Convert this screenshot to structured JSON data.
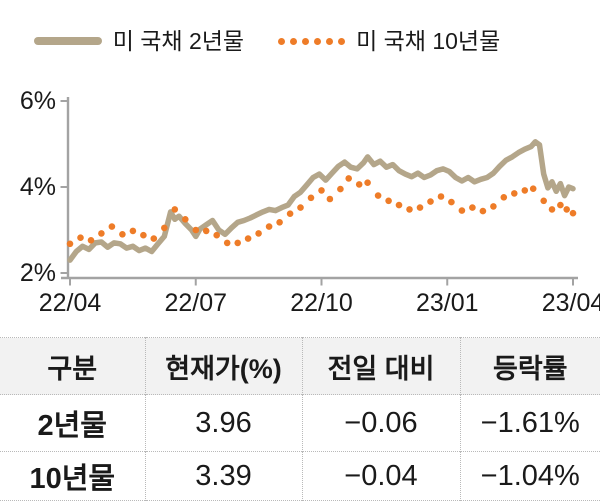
{
  "legend": {
    "items": [
      {
        "label": "미 국채 2년물",
        "swatch": "solid-line"
      },
      {
        "label": "미 국채 10년물",
        "swatch": "dotted-line"
      }
    ]
  },
  "colors": {
    "series_2y": "#b4a68a",
    "series_10y": "#ee7c28",
    "axis": "#a3a3a3",
    "text": "#1a1a1a",
    "table_header_bg": "#f2f2f2",
    "table_border": "#b9b9b9"
  },
  "chart_data": {
    "type": "line",
    "title": "",
    "xlabel": "",
    "ylabel": "",
    "x_unit": "months from 2022-04",
    "xlim": [
      0,
      12
    ],
    "ylim": [
      2,
      6
    ],
    "grid": false,
    "legend_position": "top",
    "x_ticks": [
      {
        "pos": 0,
        "label": "22/04"
      },
      {
        "pos": 3,
        "label": "22/07"
      },
      {
        "pos": 6,
        "label": "22/10"
      },
      {
        "pos": 9,
        "label": "23/01"
      },
      {
        "pos": 12,
        "label": "23/04"
      }
    ],
    "y_ticks": [
      {
        "pos": 2,
        "label": "2%"
      },
      {
        "pos": 4,
        "label": "4%"
      },
      {
        "pos": 6,
        "label": "6%"
      }
    ],
    "series": [
      {
        "name": "미 국채 2년물",
        "style": "solid",
        "color": "#b4a68a",
        "points": [
          [
            0,
            2.3
          ],
          [
            0.15,
            2.5
          ],
          [
            0.3,
            2.62
          ],
          [
            0.45,
            2.55
          ],
          [
            0.6,
            2.7
          ],
          [
            0.75,
            2.72
          ],
          [
            0.9,
            2.6
          ],
          [
            1.05,
            2.7
          ],
          [
            1.2,
            2.68
          ],
          [
            1.35,
            2.58
          ],
          [
            1.5,
            2.62
          ],
          [
            1.65,
            2.52
          ],
          [
            1.8,
            2.58
          ],
          [
            1.95,
            2.5
          ],
          [
            2.1,
            2.68
          ],
          [
            2.25,
            2.85
          ],
          [
            2.4,
            3.42
          ],
          [
            2.5,
            3.25
          ],
          [
            2.6,
            3.32
          ],
          [
            2.75,
            3.15
          ],
          [
            2.9,
            3.0
          ],
          [
            3.0,
            2.85
          ],
          [
            3.1,
            3.02
          ],
          [
            3.25,
            3.12
          ],
          [
            3.4,
            3.22
          ],
          [
            3.55,
            3.0
          ],
          [
            3.7,
            2.9
          ],
          [
            3.85,
            3.05
          ],
          [
            4.0,
            3.18
          ],
          [
            4.15,
            3.22
          ],
          [
            4.3,
            3.28
          ],
          [
            4.45,
            3.35
          ],
          [
            4.6,
            3.42
          ],
          [
            4.75,
            3.48
          ],
          [
            4.9,
            3.45
          ],
          [
            5.05,
            3.52
          ],
          [
            5.2,
            3.58
          ],
          [
            5.35,
            3.78
          ],
          [
            5.5,
            3.88
          ],
          [
            5.65,
            4.05
          ],
          [
            5.8,
            4.22
          ],
          [
            5.95,
            4.3
          ],
          [
            6.1,
            4.16
          ],
          [
            6.25,
            4.32
          ],
          [
            6.4,
            4.48
          ],
          [
            6.55,
            4.58
          ],
          [
            6.7,
            4.46
          ],
          [
            6.85,
            4.42
          ],
          [
            7.0,
            4.56
          ],
          [
            7.1,
            4.7
          ],
          [
            7.25,
            4.52
          ],
          [
            7.4,
            4.6
          ],
          [
            7.55,
            4.46
          ],
          [
            7.7,
            4.52
          ],
          [
            7.85,
            4.38
          ],
          [
            8.0,
            4.3
          ],
          [
            8.15,
            4.24
          ],
          [
            8.3,
            4.32
          ],
          [
            8.45,
            4.22
          ],
          [
            8.6,
            4.28
          ],
          [
            8.75,
            4.38
          ],
          [
            8.9,
            4.42
          ],
          [
            9.05,
            4.36
          ],
          [
            9.2,
            4.22
          ],
          [
            9.35,
            4.14
          ],
          [
            9.5,
            4.22
          ],
          [
            9.65,
            4.12
          ],
          [
            9.8,
            4.18
          ],
          [
            9.95,
            4.22
          ],
          [
            10.1,
            4.32
          ],
          [
            10.25,
            4.48
          ],
          [
            10.4,
            4.62
          ],
          [
            10.55,
            4.7
          ],
          [
            10.7,
            4.8
          ],
          [
            10.85,
            4.88
          ],
          [
            11.0,
            4.94
          ],
          [
            11.1,
            5.05
          ],
          [
            11.2,
            4.98
          ],
          [
            11.3,
            4.3
          ],
          [
            11.4,
            3.98
          ],
          [
            11.5,
            4.12
          ],
          [
            11.6,
            3.9
          ],
          [
            11.7,
            4.08
          ],
          [
            11.8,
            3.8
          ],
          [
            11.9,
            4.0
          ],
          [
            12,
            3.96
          ]
        ]
      },
      {
        "name": "미 국채 10년물",
        "style": "dotted",
        "color": "#ee7c28",
        "points": [
          [
            0,
            2.68
          ],
          [
            0.25,
            2.82
          ],
          [
            0.5,
            2.76
          ],
          [
            0.75,
            2.92
          ],
          [
            1.0,
            3.08
          ],
          [
            1.25,
            2.9
          ],
          [
            1.5,
            2.98
          ],
          [
            1.75,
            2.88
          ],
          [
            2.0,
            2.8
          ],
          [
            2.25,
            3.05
          ],
          [
            2.5,
            3.48
          ],
          [
            2.75,
            3.25
          ],
          [
            3.0,
            3.0
          ],
          [
            3.25,
            2.98
          ],
          [
            3.5,
            2.88
          ],
          [
            3.75,
            2.7
          ],
          [
            4.0,
            2.7
          ],
          [
            4.25,
            2.8
          ],
          [
            4.5,
            2.92
          ],
          [
            4.75,
            3.08
          ],
          [
            5.0,
            3.18
          ],
          [
            5.25,
            3.38
          ],
          [
            5.5,
            3.52
          ],
          [
            5.75,
            3.75
          ],
          [
            6.0,
            3.92
          ],
          [
            6.2,
            3.72
          ],
          [
            6.45,
            3.95
          ],
          [
            6.65,
            4.2
          ],
          [
            6.9,
            4.06
          ],
          [
            7.1,
            4.1
          ],
          [
            7.35,
            3.8
          ],
          [
            7.6,
            3.68
          ],
          [
            7.85,
            3.58
          ],
          [
            8.1,
            3.48
          ],
          [
            8.35,
            3.52
          ],
          [
            8.6,
            3.66
          ],
          [
            8.85,
            3.78
          ],
          [
            9.1,
            3.65
          ],
          [
            9.35,
            3.45
          ],
          [
            9.6,
            3.52
          ],
          [
            9.85,
            3.44
          ],
          [
            10.1,
            3.55
          ],
          [
            10.35,
            3.76
          ],
          [
            10.6,
            3.85
          ],
          [
            10.85,
            3.92
          ],
          [
            11.05,
            3.96
          ],
          [
            11.3,
            3.68
          ],
          [
            11.5,
            3.48
          ],
          [
            11.7,
            3.58
          ],
          [
            11.85,
            3.48
          ],
          [
            12,
            3.39
          ]
        ]
      }
    ]
  },
  "table": {
    "headers": [
      "구분",
      "현재가(%)",
      "전일 대비",
      "등락률"
    ],
    "rows": [
      {
        "cells": [
          "2년물",
          "3.96",
          "−0.06",
          "−1.61%"
        ]
      },
      {
        "cells": [
          "10년물",
          "3.39",
          "−0.04",
          "−1.04%"
        ]
      }
    ]
  }
}
